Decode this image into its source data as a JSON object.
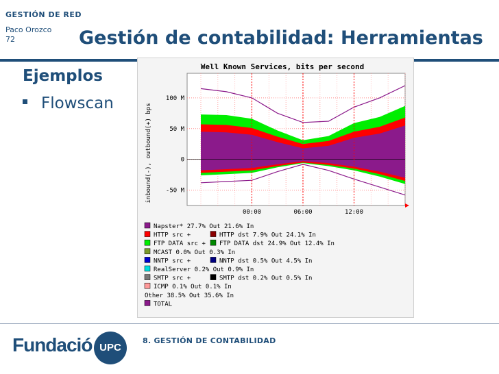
{
  "header": {
    "department": "GESTIÓN DE RED",
    "author": "Paco Orozco",
    "page_number": "72",
    "title": "Gestión de contabilidad: Herramientas"
  },
  "content": {
    "section_heading": "Ejemplos",
    "bullet": "Flowscan"
  },
  "footer": {
    "chapter": "8. GESTIÓN DE CONTABILIDAD",
    "logo_word": "Fundació",
    "logo_badge": "UPC"
  },
  "chart_data": {
    "type": "area",
    "title": "Well Known Services, bits per second",
    "ylabel": "inbound(-), outbound(+) bps",
    "ylim": [
      -75000000,
      140000000
    ],
    "y_ticks": [
      {
        "value": 100000000,
        "label": "100 M"
      },
      {
        "value": 50000000,
        "label": "50 M"
      },
      {
        "value": 0,
        "label": "0"
      },
      {
        "value": -50000000,
        "label": "-50 M"
      }
    ],
    "x_ticks": [
      "00:00",
      "06:00",
      "12:00"
    ],
    "grid": true,
    "legend_placement": "bottom",
    "x": [
      0,
      3,
      6,
      9,
      12,
      15,
      18,
      21,
      24
    ],
    "series": [
      {
        "name": "Napster*",
        "color": "#8b1a8b",
        "out": [
          45,
          44,
          40,
          28,
          18,
          22,
          35,
          42,
          55
        ],
        "in": [
          -18,
          -16,
          -14,
          -8,
          -3,
          -6,
          -12,
          -20,
          -30
        ]
      },
      {
        "name": "HTTP src + HTTP dst",
        "color": "#ff0000",
        "out": [
          12,
          12,
          11,
          9,
          7,
          8,
          10,
          11,
          13
        ],
        "in": [
          -4,
          -4,
          -4,
          -3,
          -2,
          -3,
          -3,
          -4,
          -5
        ]
      },
      {
        "name": "FTP DATA src + FTP DATA dst",
        "color": "#00ee00",
        "out": [
          16,
          16,
          15,
          10,
          6,
          8,
          14,
          16,
          19
        ],
        "in": [
          -4,
          -4,
          -4,
          -2,
          -1,
          -2,
          -3,
          -4,
          -5
        ]
      },
      {
        "name": "TOTAL",
        "color": "#8b1a8b",
        "out": [
          115,
          110,
          100,
          75,
          60,
          62,
          85,
          100,
          120
        ],
        "in": [
          -38,
          -36,
          -34,
          -20,
          -8,
          -18,
          -32,
          -45,
          -58
        ]
      }
    ],
    "legend": [
      {
        "swatch": "#8b1a8b",
        "text": "Napster*  27.7% Out  21.6% In"
      },
      {
        "swatch": "#ff0000",
        "text": "HTTP src    +",
        "swatch2": "#8b0000",
        "text2": "HTTP dst       7.9% Out  24.1% In"
      },
      {
        "swatch": "#00ee00",
        "text": "FTP DATA src +",
        "swatch2": "#008800",
        "text2": "FTP DATA dst  24.9% Out  12.4% In"
      },
      {
        "swatch": "#7a9a2a",
        "text": "MCAST  0.0% Out  0.3% In"
      },
      {
        "swatch": "#0000cc",
        "text": "NNTP src    +",
        "swatch2": "#000080",
        "text2": "NNTP dst       0.5% Out   4.5% In"
      },
      {
        "swatch": "#00dddd",
        "text": "RealServer  0.2% Out  0.9% In"
      },
      {
        "swatch": "#777777",
        "text": "SMTP src    +",
        "swatch2": "#000000",
        "text2": "SMTP dst       0.2% Out   0.5% In"
      },
      {
        "swatch": "#ff9999",
        "text": "ICMP  0.1% Out  0.1% In"
      },
      {
        "swatch": null,
        "text": "Other 38.5% Out  35.6% In"
      },
      {
        "swatch": "#8b1a8b",
        "text": "TOTAL"
      }
    ]
  }
}
